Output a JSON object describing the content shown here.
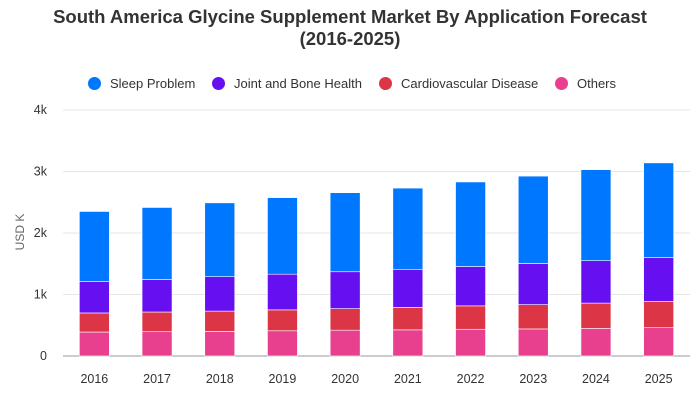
{
  "chart_data": {
    "type": "bar",
    "stacked": true,
    "title": [
      "South America Glycine Supplement Market By Application Forecast",
      "(2016-2025)"
    ],
    "ylabel": "USD K",
    "xlabel": "",
    "categories": [
      "2016",
      "2017",
      "2018",
      "2019",
      "2020",
      "2021",
      "2022",
      "2023",
      "2024",
      "2025"
    ],
    "yticks": [
      {
        "value": 0,
        "label": "0"
      },
      {
        "value": 1000,
        "label": "1k"
      },
      {
        "value": 2000,
        "label": "2k"
      },
      {
        "value": 3000,
        "label": "3k"
      },
      {
        "value": 4000,
        "label": "4k"
      }
    ],
    "ylim": [
      0,
      4000
    ],
    "grid": true,
    "legend_position": "top",
    "series": [
      {
        "name": "Others",
        "color": "#e8408f",
        "values": [
          390,
          395,
          400,
          410,
          420,
          425,
          435,
          440,
          450,
          460
        ]
      },
      {
        "name": "Cardiovascular Disease",
        "color": "#dc3545",
        "values": [
          310,
          320,
          330,
          340,
          350,
          365,
          380,
          395,
          410,
          425
        ]
      },
      {
        "name": "Joint and Bone Health",
        "color": "#6610f2",
        "values": [
          510,
          530,
          560,
          580,
          600,
          620,
          640,
          670,
          690,
          715
        ]
      },
      {
        "name": "Sleep Problem",
        "color": "#0077ff",
        "values": [
          1140,
          1170,
          1200,
          1245,
          1285,
          1320,
          1375,
          1420,
          1480,
          1540
        ]
      }
    ],
    "legend_order": [
      "Sleep Problem",
      "Joint and Bone Health",
      "Cardiovascular Disease",
      "Others"
    ]
  }
}
